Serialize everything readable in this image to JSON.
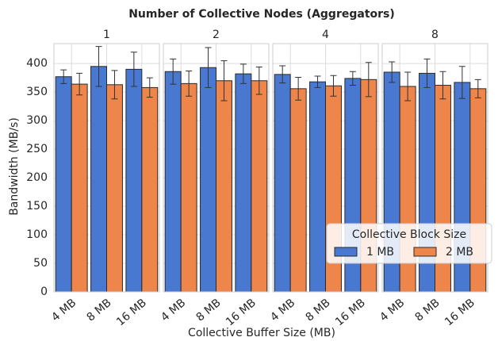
{
  "chart_data": {
    "type": "bar",
    "title": "Number of Collective Nodes (Aggregators)",
    "x_label": "Collective Buffer Size (MB)",
    "y_label": "Bandwidth (MB/s)",
    "legend_title": "Collective Block Size",
    "legend": "lower right",
    "grid": true,
    "ylim": [
      0,
      435
    ],
    "yticks": [
      0,
      50,
      100,
      150,
      200,
      250,
      300,
      350,
      400
    ],
    "categories": [
      "4 MB",
      "8 MB",
      "16 MB"
    ],
    "series": [
      {
        "name": "1 MB",
        "color": "#4878d0"
      },
      {
        "name": "2 MB",
        "color": "#ee854a"
      }
    ],
    "panels": [
      {
        "title": "1",
        "values": [
          [
            377,
            395,
            390
          ],
          [
            364,
            363,
            358
          ]
        ],
        "errors": [
          [
            12,
            35,
            30
          ],
          [
            19,
            25,
            17
          ]
        ]
      },
      {
        "title": "2",
        "values": [
          [
            386,
            393,
            382
          ],
          [
            365,
            370,
            370
          ]
        ],
        "errors": [
          [
            22,
            35,
            17
          ],
          [
            22,
            35,
            24
          ]
        ]
      },
      {
        "title": "4",
        "values": [
          [
            381,
            368,
            374
          ],
          [
            356,
            361,
            372
          ]
        ],
        "errors": [
          [
            15,
            10,
            12
          ],
          [
            20,
            18,
            30
          ]
        ]
      },
      {
        "title": "8",
        "values": [
          [
            385,
            383,
            367
          ],
          [
            360,
            362,
            356
          ]
        ],
        "errors": [
          [
            18,
            25,
            28
          ],
          [
            25,
            24,
            16
          ]
        ]
      }
    ]
  }
}
